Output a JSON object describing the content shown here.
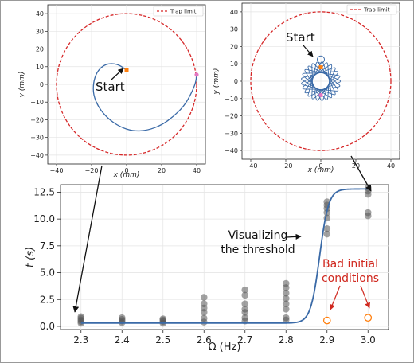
{
  "chart_data": [
    {
      "type": "line",
      "panel": "top-left",
      "xlabel": "x (mm)",
      "ylabel": "y (mm)",
      "xlim": [
        -45,
        45
      ],
      "ylim": [
        -45,
        45
      ],
      "xticks": [
        -40,
        -20,
        0,
        20,
        40
      ],
      "yticks": [
        -40,
        -30,
        -20,
        -10,
        0,
        10,
        20,
        30,
        40
      ],
      "grid": true,
      "legend": {
        "placement": "top-right",
        "entries": [
          "Trap limit"
        ]
      },
      "series": [
        {
          "name": "Trap limit",
          "shape": "circle",
          "center": [
            0,
            0
          ],
          "radius": 40,
          "color": "#d62728",
          "style": "dashed"
        },
        {
          "shape": "spiral",
          "color": "#3a6aa7",
          "start": [
            0,
            8
          ],
          "end": [
            40,
            5.5
          ]
        }
      ],
      "annotations": [
        {
          "text": "Start",
          "at": [
            0,
            8
          ]
        }
      ],
      "markers": {
        "start_color": "#ff7f0e",
        "end_color": "#e377c2"
      }
    },
    {
      "type": "line",
      "panel": "top-right",
      "xlabel": "x (mm)",
      "ylabel": "y (mm)",
      "xlim": [
        -45,
        45
      ],
      "ylim": [
        -45,
        45
      ],
      "xticks": [
        -40,
        -20,
        0,
        20,
        40
      ],
      "yticks": [
        -40,
        -30,
        -20,
        -10,
        0,
        10,
        20,
        30,
        40
      ],
      "grid": true,
      "legend": {
        "placement": "top-right",
        "entries": [
          "Trap limit"
        ]
      },
      "series": [
        {
          "name": "Trap limit",
          "shape": "circle",
          "center": [
            0,
            0
          ],
          "radius": 40,
          "color": "#d62728",
          "style": "dashed"
        },
        {
          "shape": "hypotrochoid",
          "color": "#3a6aa7",
          "center": [
            0,
            0
          ],
          "outer_radius": 12.5,
          "inner_radius": 4.5
        }
      ],
      "annotations": [
        {
          "text": "Start",
          "at": [
            0,
            8
          ]
        }
      ],
      "markers": {
        "start_color": "#ff7f0e",
        "end_color": "#e377c2"
      }
    },
    {
      "type": "scatter",
      "panel": "bottom",
      "xlabel": "Ω (Hz)",
      "ylabel": "t (s)",
      "xlim": [
        2.25,
        3.05
      ],
      "ylim": [
        -0.3,
        13.2
      ],
      "xticks": [
        "2.3",
        "2.4",
        "2.5",
        "2.6",
        "2.7",
        "2.8",
        "2.9",
        "3.0"
      ],
      "yticks": [
        "0.0",
        "2.5",
        "5.0",
        "7.5",
        "10.0",
        "12.5"
      ],
      "grid": true,
      "points": [
        [
          2.3,
          0.3
        ],
        [
          2.3,
          0.45
        ],
        [
          2.3,
          0.6
        ],
        [
          2.3,
          0.75
        ],
        [
          2.3,
          0.9
        ],
        [
          2.4,
          0.35
        ],
        [
          2.4,
          0.5
        ],
        [
          2.4,
          0.65
        ],
        [
          2.4,
          0.8
        ],
        [
          2.5,
          0.3
        ],
        [
          2.5,
          0.45
        ],
        [
          2.5,
          0.6
        ],
        [
          2.5,
          0.7
        ],
        [
          2.6,
          0.4
        ],
        [
          2.6,
          0.75
        ],
        [
          2.6,
          1.3
        ],
        [
          2.6,
          1.7
        ],
        [
          2.6,
          2.1
        ],
        [
          2.6,
          2.7
        ],
        [
          2.7,
          0.5
        ],
        [
          2.7,
          0.8
        ],
        [
          2.7,
          1.3
        ],
        [
          2.7,
          1.6
        ],
        [
          2.7,
          2.1
        ],
        [
          2.7,
          2.9
        ],
        [
          2.7,
          3.4
        ],
        [
          2.8,
          0.6
        ],
        [
          2.8,
          0.8
        ],
        [
          2.8,
          1.6
        ],
        [
          2.8,
          2.1
        ],
        [
          2.8,
          2.6
        ],
        [
          2.8,
          3.1
        ],
        [
          2.8,
          3.6
        ],
        [
          2.8,
          4.0
        ],
        [
          2.9,
          8.6
        ],
        [
          2.9,
          9.1
        ],
        [
          2.9,
          10.1
        ],
        [
          2.9,
          10.6
        ],
        [
          2.9,
          11.0
        ],
        [
          2.9,
          11.3
        ],
        [
          2.9,
          11.6
        ],
        [
          3.0,
          10.3
        ],
        [
          3.0,
          10.6
        ],
        [
          3.0,
          12.3
        ],
        [
          3.0,
          12.6
        ],
        [
          3.0,
          12.9
        ]
      ],
      "bad_points": [
        [
          2.9,
          0.55
        ],
        [
          3.0,
          0.8
        ]
      ],
      "fit_curve": {
        "low": 0.3,
        "high": 12.8,
        "midpoint": 2.882,
        "width": 0.011
      },
      "colors": {
        "points": "#555555",
        "curve": "#3a6aa7",
        "bad": "#ff7f0e",
        "annot_red": "#d0281f"
      },
      "annotations": [
        {
          "text": [
            "Visualizing",
            "the threshold"
          ],
          "color": "#111111"
        },
        {
          "text": [
            "Bad initial",
            "conditions"
          ],
          "color": "#d0281f"
        }
      ]
    }
  ]
}
